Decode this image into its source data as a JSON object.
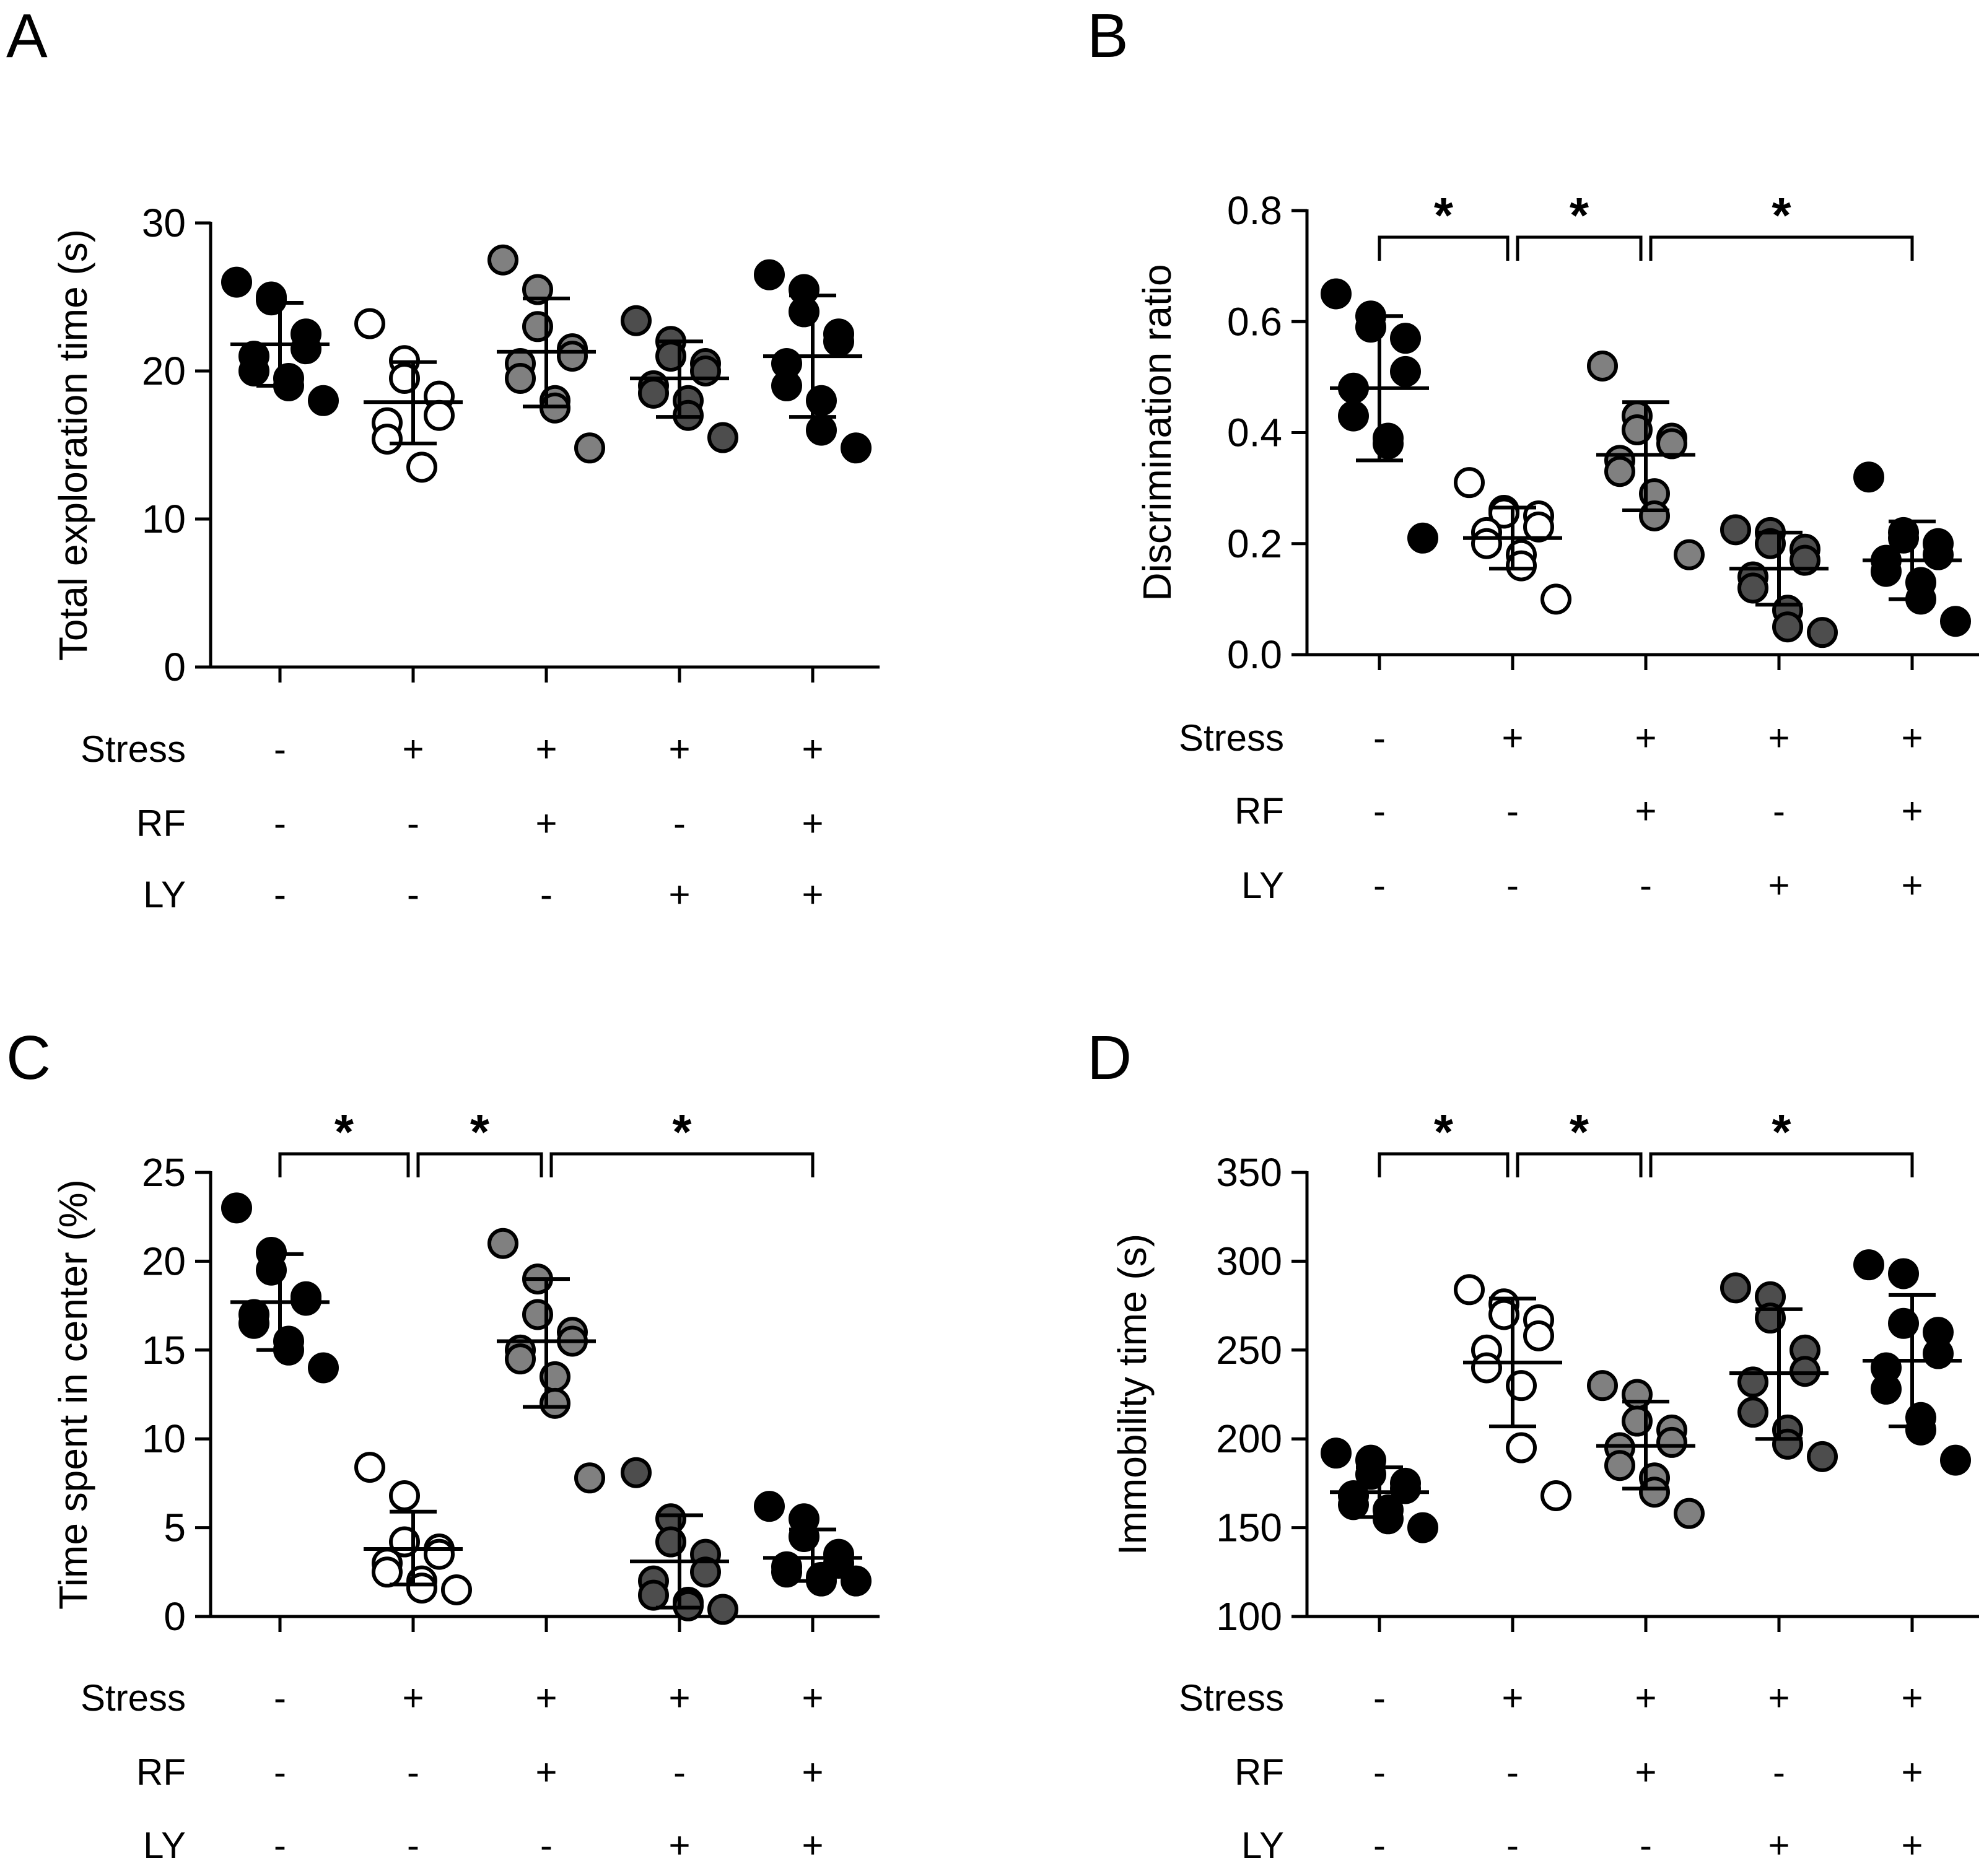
{
  "colors": {
    "black": "#000000",
    "gray": "#808080",
    "dark_gray": "#4d4d4d",
    "white": "#ffffff"
  },
  "chart_data": [
    {
      "id": "A",
      "panel_label": "A",
      "type": "scatter",
      "ylabel": "Total exploration time  (s)",
      "ylim": [
        0,
        30
      ],
      "yticks": [
        0,
        10,
        20,
        30
      ],
      "yticklabels": [
        "0",
        "10",
        "20",
        "30"
      ],
      "groups": [
        {
          "fill": "black",
          "mean": 21.8,
          "sd_low": 19.0,
          "sd_high": 24.6,
          "points": [
            26.0,
            25.0,
            24.8,
            22.5,
            21.5,
            21.0,
            20.0,
            19.5,
            19.0,
            18.0
          ]
        },
        {
          "fill": "white",
          "mean": 17.9,
          "sd_low": 15.1,
          "sd_high": 20.6,
          "points": [
            23.2,
            20.7,
            19.5,
            18.3,
            17.0,
            16.5,
            15.4,
            13.5
          ]
        },
        {
          "fill": "gray",
          "mean": 21.3,
          "sd_low": 17.6,
          "sd_high": 24.9,
          "points": [
            27.5,
            25.5,
            23.0,
            21.5,
            21.0,
            20.5,
            19.5,
            18.0,
            17.5,
            14.8
          ]
        },
        {
          "fill": "dark_gray",
          "mean": 19.5,
          "sd_low": 16.9,
          "sd_high": 22.0,
          "points": [
            23.4,
            22.0,
            21.0,
            20.5,
            20.0,
            19.0,
            18.5,
            18.0,
            17.0,
            15.5
          ]
        },
        {
          "fill": "black",
          "mean": 21.0,
          "sd_low": 16.9,
          "sd_high": 25.1,
          "points": [
            26.5,
            25.5,
            24.0,
            22.5,
            22.0,
            20.5,
            19.0,
            18.0,
            16.0,
            14.8
          ]
        }
      ],
      "brackets": [],
      "conditions": [
        {
          "label": "Stress",
          "values": [
            "-",
            "+",
            "+",
            "+",
            "+"
          ]
        },
        {
          "label": "RF",
          "values": [
            "-",
            "-",
            "+",
            "-",
            "+"
          ]
        },
        {
          "label": "LY",
          "values": [
            "-",
            "-",
            "-",
            "+",
            "+"
          ]
        }
      ]
    },
    {
      "id": "B",
      "panel_label": "B",
      "type": "scatter",
      "ylabel": "Discrimination ratio",
      "ylim": [
        0,
        0.8
      ],
      "yticks": [
        0,
        0.2,
        0.4,
        0.6,
        0.8
      ],
      "yticklabels": [
        "0.0",
        "0.2",
        "0.4",
        "0.6",
        "0.8"
      ],
      "groups": [
        {
          "fill": "black",
          "mean": 0.48,
          "sd_low": 0.35,
          "sd_high": 0.61,
          "points": [
            0.65,
            0.61,
            0.59,
            0.57,
            0.51,
            0.48,
            0.43,
            0.39,
            0.38,
            0.21
          ]
        },
        {
          "fill": "white",
          "mean": 0.21,
          "sd_low": 0.155,
          "sd_high": 0.265,
          "points": [
            0.31,
            0.26,
            0.255,
            0.25,
            0.23,
            0.22,
            0.2,
            0.18,
            0.16,
            0.1
          ]
        },
        {
          "fill": "gray",
          "mean": 0.36,
          "sd_low": 0.26,
          "sd_high": 0.455,
          "points": [
            0.52,
            0.43,
            0.405,
            0.39,
            0.38,
            0.35,
            0.33,
            0.29,
            0.25,
            0.18
          ]
        },
        {
          "fill": "dark_gray",
          "mean": 0.155,
          "sd_low": 0.09,
          "sd_high": 0.22,
          "points": [
            0.225,
            0.22,
            0.2,
            0.19,
            0.17,
            0.14,
            0.12,
            0.08,
            0.05,
            0.04
          ]
        },
        {
          "fill": "black",
          "mean": 0.17,
          "sd_low": 0.1,
          "sd_high": 0.24,
          "points": [
            0.32,
            0.22,
            0.21,
            0.2,
            0.18,
            0.17,
            0.15,
            0.13,
            0.1,
            0.06
          ]
        }
      ],
      "brackets": [
        {
          "from": 0,
          "to": 1,
          "label": "*"
        },
        {
          "from": 1,
          "to": 2,
          "label": "*"
        },
        {
          "from": 2,
          "to": 4,
          "label": "*"
        }
      ],
      "conditions": [
        {
          "label": "Stress",
          "values": [
            "-",
            "+",
            "+",
            "+",
            "+"
          ]
        },
        {
          "label": "RF",
          "values": [
            "-",
            "-",
            "+",
            "-",
            "+"
          ]
        },
        {
          "label": "LY",
          "values": [
            "-",
            "-",
            "-",
            "+",
            "+"
          ]
        }
      ]
    },
    {
      "id": "C",
      "panel_label": "C",
      "type": "scatter",
      "ylabel": "Time spent in center (%)",
      "ylim": [
        0,
        25
      ],
      "yticks": [
        0,
        5,
        10,
        15,
        20,
        25
      ],
      "yticklabels": [
        "0",
        "5",
        "10",
        "15",
        "20",
        "25"
      ],
      "groups": [
        {
          "fill": "black",
          "mean": 17.7,
          "sd_low": 15.0,
          "sd_high": 20.4,
          "points": [
            23.0,
            20.5,
            19.5,
            18.0,
            17.8,
            17.0,
            16.5,
            15.5,
            15.0,
            14.0
          ]
        },
        {
          "fill": "white",
          "mean": 3.8,
          "sd_low": 1.8,
          "sd_high": 5.9,
          "points": [
            8.4,
            6.8,
            4.2,
            3.8,
            3.5,
            3.0,
            2.5,
            2.0,
            1.6,
            1.5
          ]
        },
        {
          "fill": "gray",
          "mean": 15.5,
          "sd_low": 11.8,
          "sd_high": 19.0,
          "points": [
            21.0,
            19.0,
            17.0,
            16.0,
            15.5,
            15.0,
            14.5,
            13.5,
            12.0,
            7.8
          ]
        },
        {
          "fill": "dark_gray",
          "mean": 3.1,
          "sd_low": 0.5,
          "sd_high": 5.7,
          "points": [
            8.1,
            5.5,
            4.2,
            3.5,
            2.5,
            2.0,
            1.2,
            0.8,
            0.6,
            0.4
          ]
        },
        {
          "fill": "black",
          "mean": 3.3,
          "sd_low": 2.0,
          "sd_high": 4.9,
          "points": [
            6.2,
            5.5,
            4.5,
            3.5,
            3.0,
            2.8,
            2.5,
            2.2,
            2.0,
            2.0
          ]
        }
      ],
      "brackets": [
        {
          "from": 0,
          "to": 1,
          "label": "*"
        },
        {
          "from": 1,
          "to": 2,
          "label": "*"
        },
        {
          "from": 2,
          "to": 4,
          "label": "*"
        }
      ],
      "conditions": [
        {
          "label": "Stress",
          "values": [
            "-",
            "+",
            "+",
            "+",
            "+"
          ]
        },
        {
          "label": "RF",
          "values": [
            "-",
            "-",
            "+",
            "-",
            "+"
          ]
        },
        {
          "label": "LY",
          "values": [
            "-",
            "-",
            "-",
            "+",
            "+"
          ]
        }
      ]
    },
    {
      "id": "D",
      "panel_label": "D",
      "type": "scatter",
      "ylabel": "Immobility time (s)",
      "ylim": [
        100,
        350
      ],
      "yticks": [
        100,
        150,
        200,
        250,
        300,
        350
      ],
      "yticklabels": [
        "100",
        "150",
        "200",
        "250",
        "300",
        "350"
      ],
      "groups": [
        {
          "fill": "black",
          "mean": 170,
          "sd_low": 156,
          "sd_high": 184,
          "points": [
            192,
            188,
            180,
            175,
            172,
            168,
            163,
            160,
            155,
            150
          ]
        },
        {
          "fill": "white",
          "mean": 243,
          "sd_low": 207,
          "sd_high": 279,
          "points": [
            284,
            276,
            270,
            267,
            258,
            250,
            240,
            230,
            195,
            168
          ]
        },
        {
          "fill": "gray",
          "mean": 196,
          "sd_low": 172,
          "sd_high": 221,
          "points": [
            230,
            225,
            210,
            205,
            198,
            195,
            185,
            178,
            170,
            158
          ]
        },
        {
          "fill": "dark_gray",
          "mean": 237,
          "sd_low": 200,
          "sd_high": 273,
          "points": [
            285,
            280,
            268,
            250,
            238,
            232,
            215,
            205,
            197,
            190
          ]
        },
        {
          "fill": "black",
          "mean": 244,
          "sd_low": 207,
          "sd_high": 281,
          "points": [
            298,
            293,
            265,
            260,
            248,
            240,
            228,
            212,
            205,
            188
          ]
        }
      ],
      "brackets": [
        {
          "from": 0,
          "to": 1,
          "label": "*"
        },
        {
          "from": 1,
          "to": 2,
          "label": "*"
        },
        {
          "from": 2,
          "to": 4,
          "label": "*"
        }
      ],
      "conditions": [
        {
          "label": "Stress",
          "values": [
            "-",
            "+",
            "+",
            "+",
            "+"
          ]
        },
        {
          "label": "RF",
          "values": [
            "-",
            "-",
            "+",
            "-",
            "+"
          ]
        },
        {
          "label": "LY",
          "values": [
            "-",
            "-",
            "-",
            "+",
            "+"
          ]
        }
      ]
    }
  ]
}
